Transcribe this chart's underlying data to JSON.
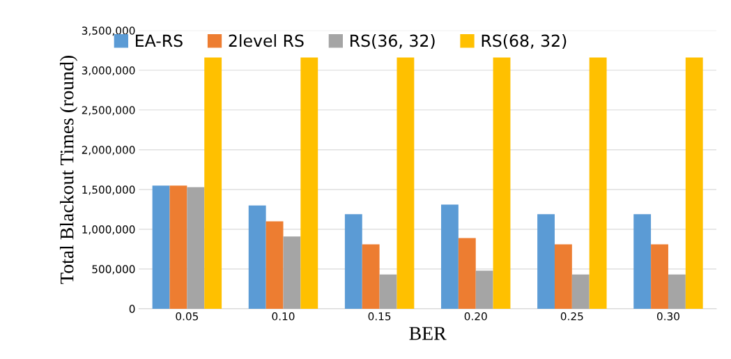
{
  "chart_data": {
    "type": "bar",
    "xlabel": "BER",
    "ylabel": "Total Blackout Times (round)",
    "categories": [
      "0.05",
      "0.10",
      "0.15",
      "0.20",
      "0.25",
      "0.30"
    ],
    "series": [
      {
        "name": "EA-RS",
        "color": "#5b9bd5",
        "values": [
          1550000,
          1300000,
          1190000,
          1310000,
          1190000,
          1190000
        ]
      },
      {
        "name": "2level RS",
        "color": "#ed7d31",
        "values": [
          1550000,
          1100000,
          810000,
          890000,
          810000,
          810000
        ]
      },
      {
        "name": "RS(36, 32)",
        "color": "#a5a5a5",
        "values": [
          1530000,
          910000,
          430000,
          480000,
          430000,
          430000
        ]
      },
      {
        "name": "RS(68, 32)",
        "color": "#ffc000",
        "values": [
          3160000,
          3160000,
          3160000,
          3160000,
          3160000,
          3160000
        ]
      }
    ],
    "ylim": [
      0,
      3500000
    ],
    "yticks": [
      {
        "value": 0,
        "label": "0"
      },
      {
        "value": 500000,
        "label": "500,000"
      },
      {
        "value": 1000000,
        "label": "1,000,000"
      },
      {
        "value": 1500000,
        "label": "1,500,000"
      },
      {
        "value": 2000000,
        "label": "2,000,000"
      },
      {
        "value": 2500000,
        "label": "2,500,000"
      },
      {
        "value": 3000000,
        "label": "3,000,000"
      },
      {
        "value": 3500000,
        "label": "3,500,000"
      }
    ],
    "grid": "y",
    "legend": "top"
  }
}
